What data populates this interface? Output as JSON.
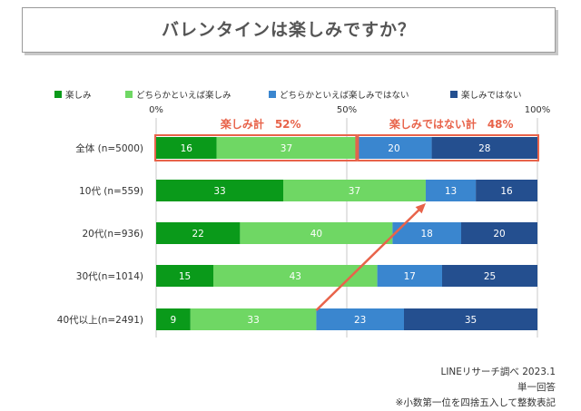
{
  "title": "バレンタインは楽しみですか？",
  "colors": {
    "series": [
      "#0a9a1a",
      "#6fd764",
      "#3a86cf",
      "#244f8f"
    ],
    "highlight": "#e8634a"
  },
  "chart_data": {
    "type": "bar",
    "orientation": "horizontal",
    "stacked": true,
    "title": "バレンタインは楽しみですか？",
    "categories": [
      "全体 (n=5000)",
      "10代 (n=559)",
      "20代(n=936)",
      "30代(n=1014)",
      "40代以上(n=2491)"
    ],
    "series": [
      {
        "name": "楽しみ",
        "values": [
          16,
          33,
          22,
          15,
          9
        ]
      },
      {
        "name": "どちらかといえば楽しみ",
        "values": [
          37,
          37,
          40,
          43,
          33
        ]
      },
      {
        "name": "どちらかといえば楽しみではない",
        "values": [
          20,
          13,
          18,
          17,
          23
        ]
      },
      {
        "name": "楽しみではない",
        "values": [
          28,
          16,
          20,
          25,
          35
        ]
      }
    ],
    "axis_ticks": [
      "0%",
      "50%",
      "100%"
    ],
    "xlim": [
      0,
      100
    ],
    "annotations": [
      {
        "label": "楽しみ計",
        "value": "52%"
      },
      {
        "label": "楽しみではない計",
        "value": "48%"
      }
    ]
  },
  "footer": {
    "source": "LINEリサーチ調べ 2023.1",
    "answer_type": "単一回答",
    "note": "※小数第一位を四捨五入して整数表記"
  }
}
